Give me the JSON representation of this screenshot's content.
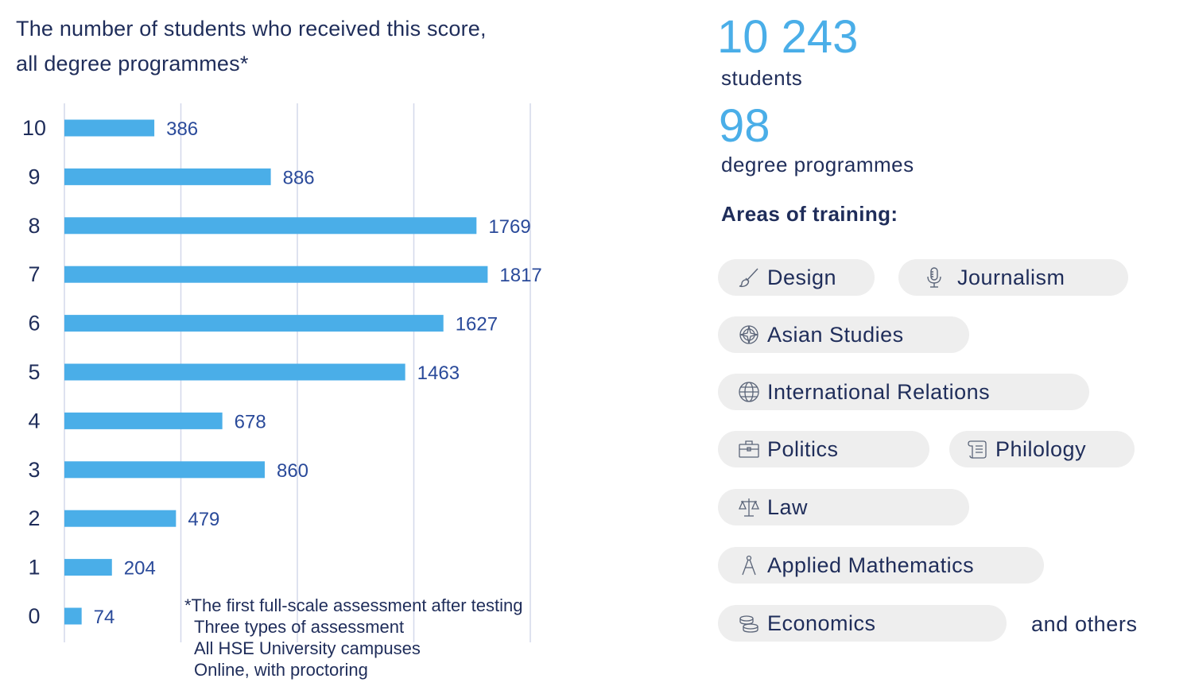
{
  "chart_data": {
    "type": "bar",
    "orientation": "horizontal",
    "title": "The number of students who received this score, all degree programmes*",
    "title_lines": [
      "The number of students who received this score,",
      "all degree programmes*"
    ],
    "categories": [
      "10",
      "9",
      "8",
      "7",
      "6",
      "5",
      "4",
      "3",
      "2",
      "1",
      "0"
    ],
    "values": [
      386,
      886,
      1769,
      1817,
      1627,
      1463,
      678,
      860,
      479,
      204,
      74
    ],
    "xlim": [
      0,
      2000
    ],
    "grid": true,
    "bar_color": "#4aaee8",
    "label_color": "#2a4a9a",
    "grid_color": "#d3d8ea"
  },
  "footnote": {
    "line1": "*The first full-scale assessment after testing",
    "line2": "Three types of assessment",
    "line3": "All HSE University campuses",
    "line4": "Online, with proctoring"
  },
  "stats": {
    "students_count": "10 243",
    "students_label": "students",
    "programmes_count": "98",
    "programmes_label": "degree programmes"
  },
  "areas": {
    "title": "Areas of training:",
    "items": [
      {
        "label": "Design",
        "icon": "brush-icon"
      },
      {
        "label": "Journalism",
        "icon": "microphone-icon"
      },
      {
        "label": "Asian Studies",
        "icon": "compass-rose-icon"
      },
      {
        "label": "International Relations",
        "icon": "globe-icon"
      },
      {
        "label": "Politics",
        "icon": "briefcase-icon"
      },
      {
        "label": "Philology",
        "icon": "scroll-icon"
      },
      {
        "label": "Law",
        "icon": "scales-icon"
      },
      {
        "label": "Applied Mathematics",
        "icon": "drawing-compass-icon"
      },
      {
        "label": "Economics",
        "icon": "coins-icon"
      }
    ],
    "others": "and others"
  },
  "colors": {
    "accent": "#4aaee8",
    "text": "#1f2d5a",
    "pill_bg": "#eeeeee"
  }
}
